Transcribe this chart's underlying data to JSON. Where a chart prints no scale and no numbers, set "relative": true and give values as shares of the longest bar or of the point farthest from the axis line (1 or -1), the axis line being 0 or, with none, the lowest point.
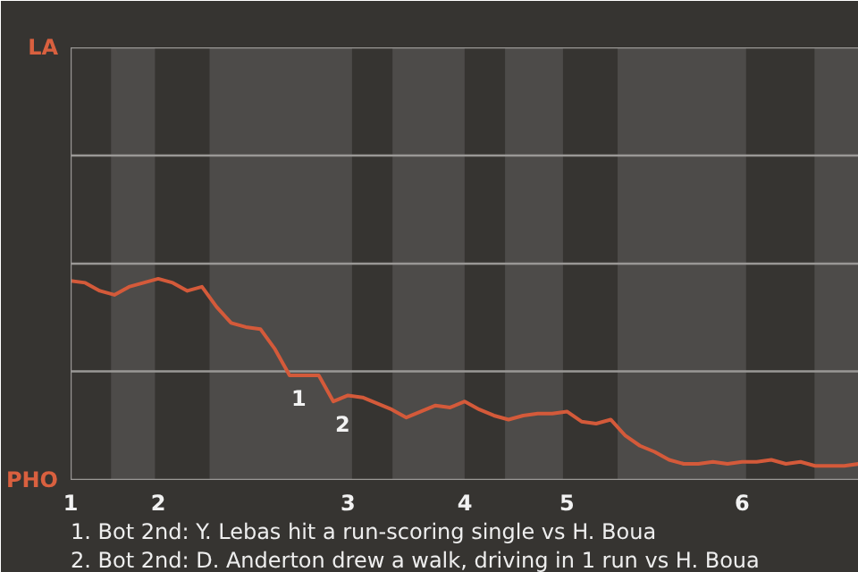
{
  "chart_data": {
    "type": "line",
    "relative": true,
    "categories": [
      "1",
      null,
      null,
      null,
      null,
      null,
      "2",
      null,
      null,
      null,
      null,
      null,
      null,
      null,
      null,
      null,
      null,
      null,
      null,
      "3",
      null,
      null,
      null,
      null,
      null,
      null,
      null,
      "4",
      null,
      null,
      null,
      null,
      null,
      null,
      "5",
      null,
      null,
      null,
      null,
      null,
      null,
      null,
      null,
      null,
      null,
      null,
      "6",
      null,
      null,
      null,
      null,
      null,
      null,
      null,
      null
    ],
    "series": [
      {
        "color": "#d45a3a",
        "values": [
          0.99,
          0.98,
          0.94,
          0.92,
          0.96,
          0.98,
          1,
          0.98,
          0.94,
          0.96,
          0.86,
          0.78,
          0.76,
          0.75,
          0.65,
          0.52,
          0.52,
          0.52,
          0.39,
          0.42,
          0.41,
          0.38,
          0.35,
          0.31,
          0.34,
          0.37,
          0.36,
          0.39,
          0.35,
          0.32,
          0.3,
          0.32,
          0.33,
          0.33,
          0.34,
          0.29,
          0.28,
          0.3,
          0.22,
          0.17,
          0.14,
          0.1,
          0.08,
          0.08,
          0.09,
          0.08,
          0.09,
          0.09,
          0.1,
          0.08,
          0.09,
          0.07,
          0.07,
          0.07,
          0.08
        ]
      }
    ],
    "ref_lines": [
      {
        "axis": "y",
        "value": 0.54,
        "color": "#9a9896"
      }
    ],
    "annotations": [
      "LA",
      "PHO",
      {
        "text": "1",
        "y": 0.52
      },
      {
        "text": "2",
        "y": 0.39
      },
      "1. Bot 2nd: Y. Lebas hit a run-scoring single vs H. Boua",
      "2. Bot 2nd: D. Anderton drew a walk, driving in 1 run vs H. Boua"
    ]
  }
}
